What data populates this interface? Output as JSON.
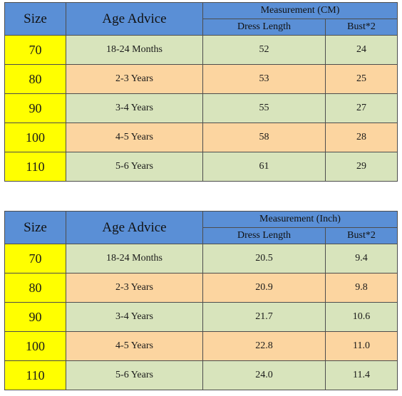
{
  "tables": [
    {
      "headers": {
        "size": "Size",
        "age": "Age Advice",
        "group": "Measurement (CM)",
        "dress_length": "Dress Length",
        "bust": "Bust*2"
      },
      "rows": [
        {
          "size": "70",
          "age": "18-24 Months",
          "dress_length": "52",
          "bust": "24"
        },
        {
          "size": "80",
          "age": "2-3 Years",
          "dress_length": "53",
          "bust": "25"
        },
        {
          "size": "90",
          "age": "3-4 Years",
          "dress_length": "55",
          "bust": "27"
        },
        {
          "size": "100",
          "age": "4-5 Years",
          "dress_length": "58",
          "bust": "28"
        },
        {
          "size": "110",
          "age": "5-6 Years",
          "dress_length": "61",
          "bust": "29"
        }
      ]
    },
    {
      "headers": {
        "size": "Size",
        "age": "Age Advice",
        "group": "Measurement (Inch)",
        "dress_length": "Dress Length",
        "bust": "Bust*2"
      },
      "rows": [
        {
          "size": "70",
          "age": "18-24 Months",
          "dress_length": "20.5",
          "bust": "9.4"
        },
        {
          "size": "80",
          "age": "2-3 Years",
          "dress_length": "20.9",
          "bust": "9.8"
        },
        {
          "size": "90",
          "age": "3-4 Years",
          "dress_length": "21.7",
          "bust": "10.6"
        },
        {
          "size": "100",
          "age": "4-5 Years",
          "dress_length": "22.8",
          "bust": "11.0"
        },
        {
          "size": "110",
          "age": "5-6 Years",
          "dress_length": "24.0",
          "bust": "11.4"
        }
      ]
    }
  ],
  "colors": {
    "header_blue": "#5a8fd6",
    "size_yellow": "#ffff00",
    "row_green": "#d8e4bc",
    "row_orange": "#fcd5a0"
  }
}
